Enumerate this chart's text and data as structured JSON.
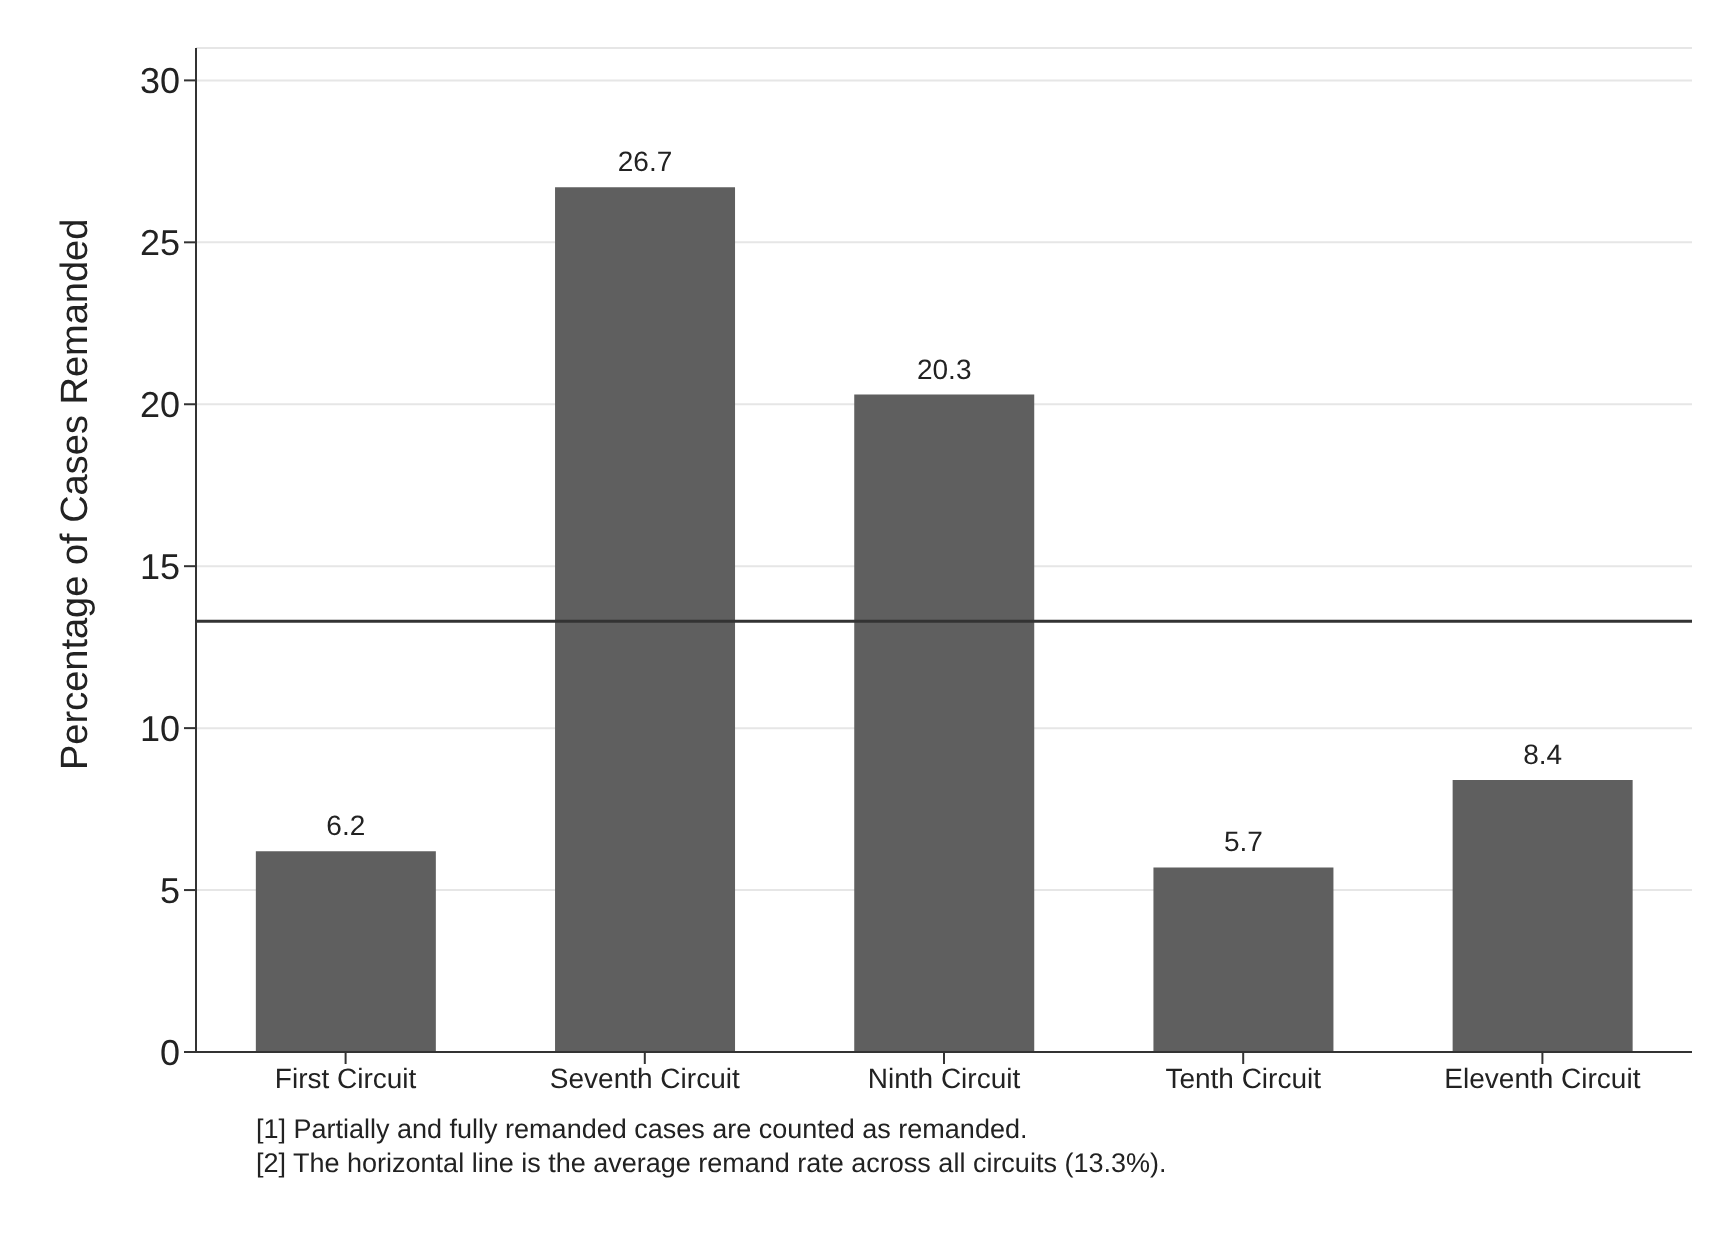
{
  "chart_data": {
    "type": "bar",
    "ylabel": "Percentage of Cases Remanded",
    "categories": [
      "First Circuit",
      "Seventh Circuit",
      "Ninth Circuit",
      "Tenth Circuit",
      "Eleventh Circuit"
    ],
    "values": [
      6.2,
      26.7,
      20.3,
      5.7,
      8.4
    ],
    "color": "#5f5f5f",
    "ylim": [
      0,
      31
    ],
    "yticks": [
      0,
      5,
      10,
      15,
      20,
      25,
      30
    ],
    "grid": "y",
    "data_labels": true,
    "ref_lines": [
      {
        "axis": "y",
        "value": 13.3,
        "color": "#333333"
      }
    ],
    "annotations": [
      "[1] Partially and fully remanded cases are counted as remanded.",
      "[2] The horizontal line is the average remand rate across all circuits (13.3%)."
    ]
  }
}
